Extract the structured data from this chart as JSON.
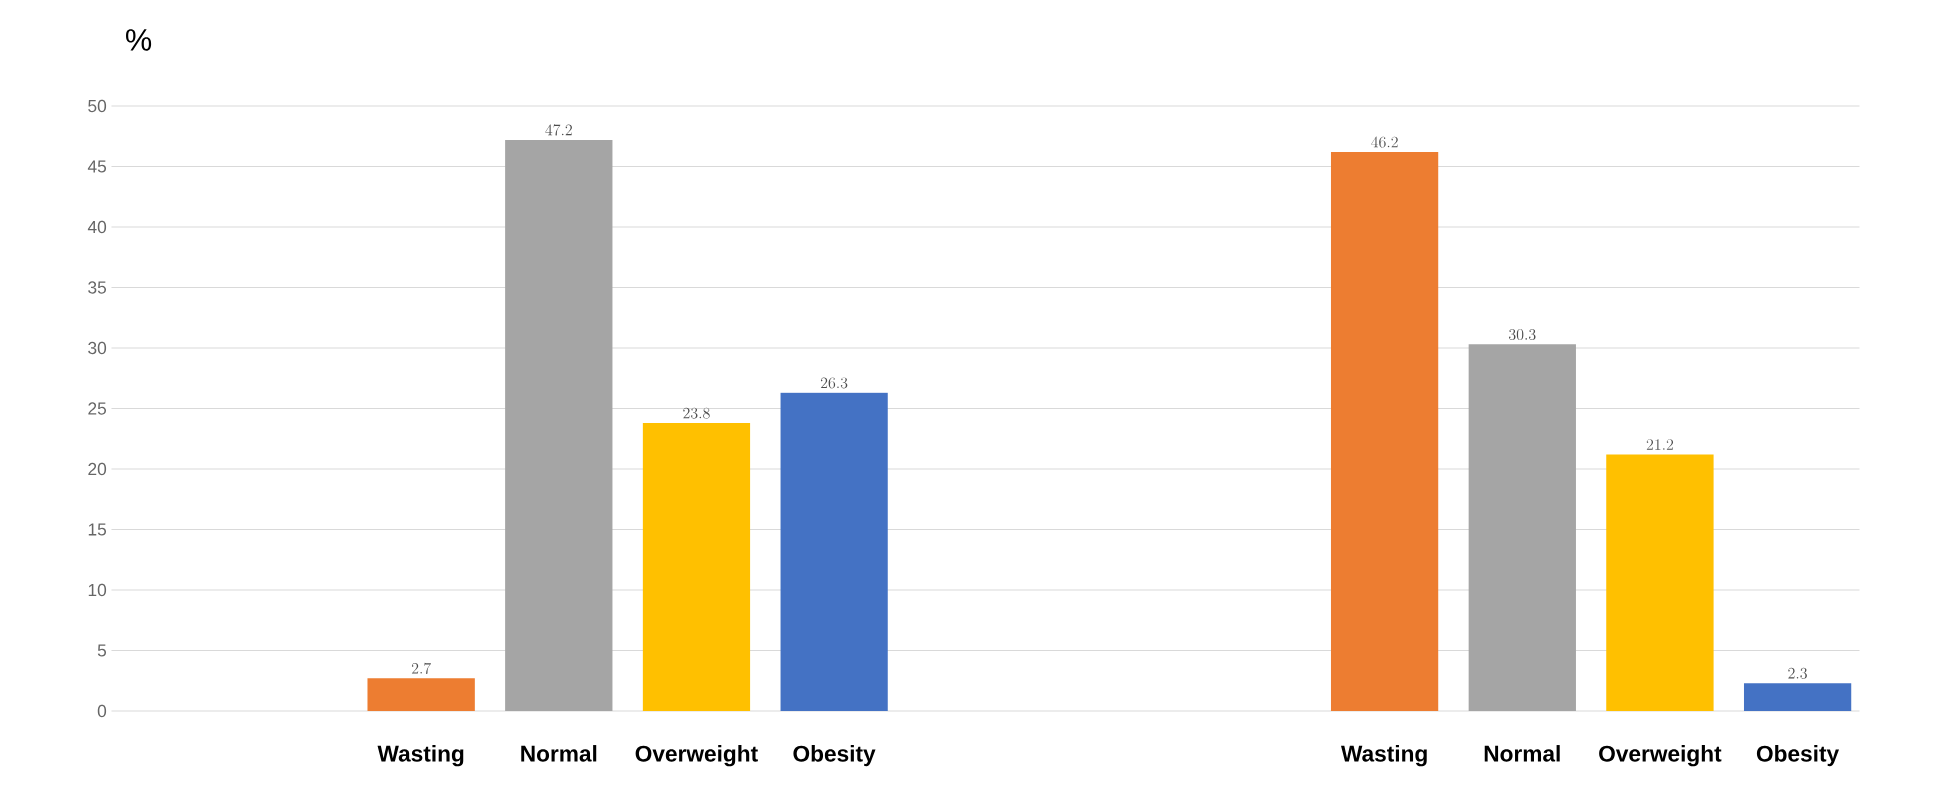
{
  "chart_data": {
    "type": "bar",
    "ylabel": "%",
    "categories": [
      null,
      null,
      "Wasting",
      "Normal",
      "Overweight",
      "Obesity",
      null,
      null,
      null,
      "Wasting",
      "Normal",
      "Overweight",
      "Obesity"
    ],
    "values": [
      null,
      null,
      2.7,
      47.2,
      23.8,
      26.3,
      null,
      null,
      null,
      46.2,
      30.3,
      21.2,
      2.3
    ],
    "colors": [
      null,
      null,
      "#ed7d31",
      "#a5a5a5",
      "#ffc000",
      "#4472c4",
      null,
      null,
      null,
      "#ed7d31",
      "#a5a5a5",
      "#ffc000",
      "#4472c4"
    ],
    "ylim": [
      0,
      50
    ],
    "yticks": [
      0,
      5,
      10,
      15,
      20,
      25,
      30,
      35,
      40,
      45,
      50
    ],
    "grid": "y",
    "data_labels": true
  }
}
